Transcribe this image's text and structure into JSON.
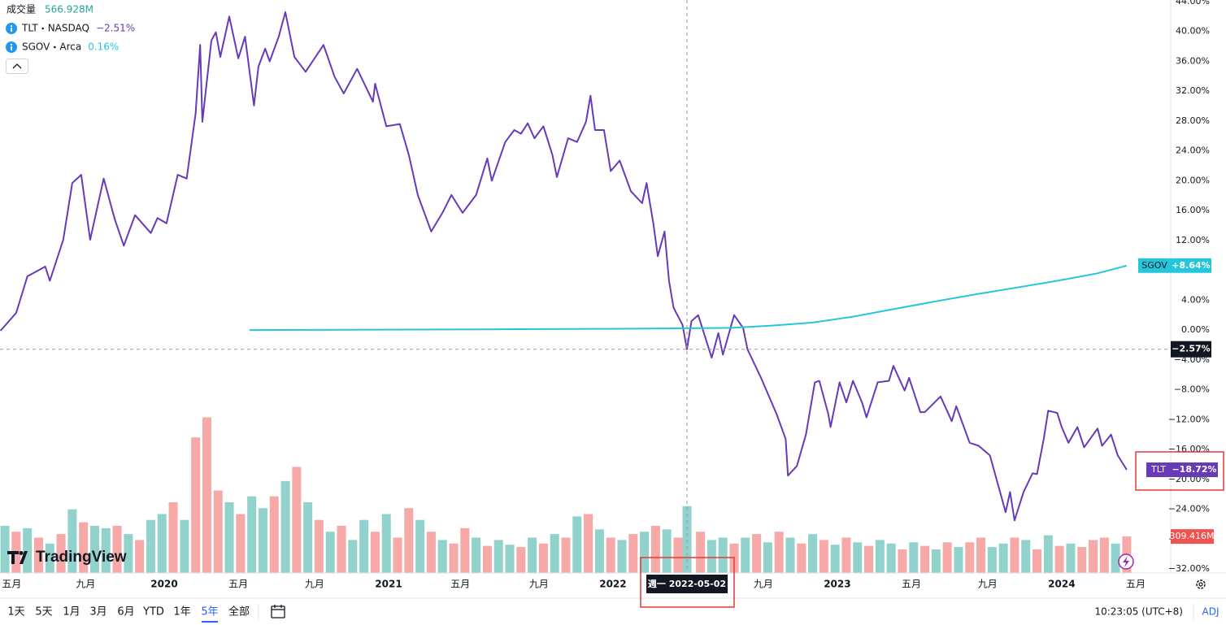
{
  "chart_data": {
    "type": "line",
    "xlim": [
      2019.268,
      2024.486
    ],
    "ylim": [
      -32,
      44
    ],
    "volume_lim": [
      0,
      4860
    ],
    "grid": true,
    "xticks": [
      {
        "value": 2019.32,
        "label": "五月"
      },
      {
        "value": 2019.65,
        "label": "九月"
      },
      {
        "value": 2020.0,
        "label": "2020"
      },
      {
        "value": 2020.33,
        "label": "五月"
      },
      {
        "value": 2020.67,
        "label": "九月"
      },
      {
        "value": 2021.0,
        "label": "2021"
      },
      {
        "value": 2021.32,
        "label": "五月"
      },
      {
        "value": 2021.67,
        "label": "九月"
      },
      {
        "value": 2022.0,
        "label": "2022"
      },
      {
        "value": 2022.67,
        "label": "九月"
      },
      {
        "value": 2023.0,
        "label": "2023"
      },
      {
        "value": 2023.33,
        "label": "五月"
      },
      {
        "value": 2023.67,
        "label": "九月"
      },
      {
        "value": 2024.0,
        "label": "2024"
      },
      {
        "value": 2024.33,
        "label": "五月"
      }
    ],
    "yticks": [
      {
        "value": 44,
        "label": "44.00%"
      },
      {
        "value": 40,
        "label": "40.00%"
      },
      {
        "value": 36,
        "label": "36.00%"
      },
      {
        "value": 32,
        "label": "32.00%"
      },
      {
        "value": 28,
        "label": "28.00%"
      },
      {
        "value": 24,
        "label": "24.00%"
      },
      {
        "value": 20,
        "label": "20.00%"
      },
      {
        "value": 16,
        "label": "16.00%"
      },
      {
        "value": 12,
        "label": "12.00%"
      },
      {
        "value": 8,
        "label": "8.00%"
      },
      {
        "value": 4,
        "label": "4.00%"
      },
      {
        "value": 0,
        "label": "0.00%"
      },
      {
        "value": -4,
        "label": "−4.00%"
      },
      {
        "value": -8,
        "label": "−8.00%"
      },
      {
        "value": -12,
        "label": "−12.00%"
      },
      {
        "value": -16,
        "label": "−16.00%"
      },
      {
        "value": -20,
        "label": "−20.00%"
      },
      {
        "value": -24,
        "label": "−24.00%"
      },
      {
        "value": -28,
        "label": "−28.00%"
      },
      {
        "value": -32,
        "label": "−32.00%"
      }
    ],
    "series": [
      {
        "name": "TLT",
        "exchange": "NASDAQ",
        "change": "−2.51%",
        "color": "#673ab7",
        "last_label": "−18.72%",
        "x": [
          2019.27,
          2019.34,
          2019.39,
          2019.47,
          2019.49,
          2019.55,
          2019.59,
          2019.63,
          2019.67,
          2019.73,
          2019.78,
          2019.82,
          2019.87,
          2019.94,
          2019.97,
          2020.01,
          2020.06,
          2020.1,
          2020.14,
          2020.16,
          2020.17,
          2020.21,
          2020.23,
          2020.25,
          2020.29,
          2020.33,
          2020.36,
          2020.4,
          2020.42,
          2020.45,
          2020.47,
          2020.51,
          2020.54,
          2020.58,
          2020.63,
          2020.71,
          2020.76,
          2020.8,
          2020.86,
          2020.93,
          2020.94,
          2020.99,
          2021.05,
          2021.09,
          2021.13,
          2021.19,
          2021.24,
          2021.28,
          2021.33,
          2021.39,
          2021.44,
          2021.46,
          2021.52,
          2021.56,
          2021.59,
          2021.62,
          2021.65,
          2021.69,
          2021.73,
          2021.75,
          2021.8,
          2021.84,
          2021.88,
          2021.9,
          2021.92,
          2021.96,
          2021.99,
          2022.03,
          2022.08,
          2022.13,
          2022.15,
          2022.18,
          2022.2,
          2022.23,
          2022.25,
          2022.27,
          2022.31,
          2022.33,
          2022.35,
          2022.38,
          2022.44,
          2022.47,
          2022.49,
          2022.54,
          2022.58,
          2022.6,
          2022.66,
          2022.73,
          2022.77,
          2022.78,
          2022.82,
          2022.86,
          2022.9,
          2022.92,
          2022.96,
          2022.97,
          2023.01,
          2023.04,
          2023.07,
          2023.11,
          2023.13,
          2023.18,
          2023.23,
          2023.25,
          2023.3,
          2023.32,
          2023.37,
          2023.39,
          2023.46,
          2023.51,
          2023.53,
          2023.59,
          2023.63,
          2023.68,
          2023.73,
          2023.75,
          2023.77,
          2023.79,
          2023.83,
          2023.87,
          2023.89,
          2023.92,
          2023.94,
          2023.98,
          2024.0,
          2024.03,
          2024.07,
          2024.1,
          2024.16,
          2024.18,
          2024.22,
          2024.25,
          2024.29
        ],
        "values": [
          -0.1,
          2.3,
          7.2,
          8.5,
          6.6,
          12.1,
          19.7,
          20.8,
          12.1,
          20.3,
          14.8,
          11.3,
          15.4,
          13.0,
          15.0,
          14.3,
          20.8,
          20.3,
          29.0,
          38.2,
          27.9,
          38.8,
          39.9,
          36.6,
          42.0,
          36.4,
          39.3,
          30.1,
          35.3,
          37.7,
          36.0,
          39.3,
          42.6,
          36.6,
          34.6,
          38.2,
          33.9,
          31.7,
          35.0,
          30.6,
          33.0,
          27.3,
          27.6,
          23.5,
          18.1,
          13.2,
          15.7,
          18.1,
          15.7,
          18.1,
          23.0,
          20.0,
          25.2,
          26.8,
          26.3,
          27.7,
          25.7,
          27.3,
          23.5,
          20.5,
          25.7,
          25.2,
          27.9,
          31.4,
          26.8,
          26.8,
          21.3,
          22.7,
          18.6,
          17.0,
          19.7,
          14.3,
          9.9,
          13.2,
          6.6,
          3.0,
          0.7,
          -2.57,
          1.2,
          2.0,
          -3.7,
          -0.4,
          -3.3,
          2.0,
          0.3,
          -2.6,
          -6.4,
          -11.3,
          -14.6,
          -19.5,
          -18.2,
          -14.0,
          -7.0,
          -6.8,
          -11.3,
          -13.0,
          -7.0,
          -9.7,
          -6.8,
          -9.7,
          -11.7,
          -7.0,
          -6.8,
          -4.8,
          -8.1,
          -6.4,
          -11.0,
          -11.0,
          -8.9,
          -12.2,
          -10.2,
          -15.1,
          -15.5,
          -16.8,
          -22.2,
          -24.4,
          -21.7,
          -25.5,
          -21.7,
          -19.2,
          -19.3,
          -14.6,
          -10.8,
          -11.1,
          -13.0,
          -15.1,
          -13.0,
          -15.7,
          -13.2,
          -15.5,
          -14.0,
          -16.8,
          -18.72
        ]
      },
      {
        "name": "SGOV",
        "exchange": "Arca",
        "change": "0.16%",
        "color": "#26c6da",
        "last_label": "+8.64%",
        "x": [
          2020.38,
          2021.44,
          2022.17,
          2022.53,
          2022.71,
          2022.89,
          2023.07,
          2023.25,
          2023.43,
          2023.62,
          2023.8,
          2023.98,
          2024.16,
          2024.29
        ],
        "values": [
          0.0,
          0.1,
          0.2,
          0.3,
          0.6,
          1.0,
          1.8,
          2.8,
          3.8,
          4.8,
          5.7,
          6.6,
          7.6,
          8.64
        ]
      }
    ],
    "volume": {
      "name": "成交量",
      "crosshair_label": "566.928M",
      "crosshair_index": 61,
      "last_label": "309.416M",
      "up_color": "#92d2cc",
      "down_color": "#f7a9a7",
      "x": [
        2019.29,
        2019.34,
        2019.39,
        2019.44,
        2019.49,
        2019.54,
        2019.59,
        2019.64,
        2019.69,
        2019.74,
        2019.79,
        2019.84,
        2019.89,
        2019.94,
        2019.99,
        2020.04,
        2020.09,
        2020.14,
        2020.19,
        2020.24,
        2020.29,
        2020.34,
        2020.39,
        2020.44,
        2020.49,
        2020.54,
        2020.59,
        2020.64,
        2020.69,
        2020.74,
        2020.79,
        2020.84,
        2020.89,
        2020.94,
        2020.99,
        2021.04,
        2021.09,
        2021.14,
        2021.19,
        2021.24,
        2021.29,
        2021.34,
        2021.39,
        2021.44,
        2021.49,
        2021.54,
        2021.59,
        2021.64,
        2021.69,
        2021.74,
        2021.79,
        2021.84,
        2021.89,
        2021.94,
        2021.99,
        2022.04,
        2022.09,
        2022.14,
        2022.19,
        2022.24,
        2022.29,
        2022.33,
        2022.39,
        2022.44,
        2022.49,
        2022.54,
        2022.59,
        2022.64,
        2022.69,
        2022.74,
        2022.79,
        2022.84,
        2022.89,
        2022.94,
        2022.99,
        2023.04,
        2023.09,
        2023.14,
        2023.19,
        2023.24,
        2023.29,
        2023.34,
        2023.39,
        2023.44,
        2023.49,
        2023.54,
        2023.59,
        2023.64,
        2023.69,
        2023.74,
        2023.79,
        2023.84,
        2023.89,
        2023.94,
        2023.99,
        2024.04,
        2024.09,
        2024.14,
        2024.19,
        2024.24,
        2024.29
      ],
      "values": [
        400,
        350,
        380,
        300,
        250,
        330,
        540,
        430,
        400,
        380,
        400,
        330,
        280,
        450,
        500,
        600,
        450,
        1150,
        1320,
        700,
        600,
        500,
        650,
        550,
        650,
        780,
        900,
        600,
        450,
        350,
        400,
        280,
        450,
        350,
        500,
        300,
        550,
        450,
        350,
        280,
        250,
        380,
        300,
        230,
        280,
        240,
        220,
        300,
        250,
        330,
        300,
        480,
        500,
        370,
        300,
        280,
        330,
        350,
        400,
        370,
        300,
        566.928,
        350,
        280,
        300,
        250,
        300,
        330,
        260,
        350,
        300,
        250,
        330,
        280,
        240,
        300,
        260,
        230,
        280,
        250,
        200,
        260,
        230,
        200,
        260,
        220,
        260,
        300,
        220,
        250,
        300,
        280,
        200,
        320,
        230,
        250,
        220,
        280,
        300,
        250,
        309.416
      ],
      "up": [
        true,
        false,
        true,
        false,
        true,
        false,
        true,
        false,
        true,
        true,
        false,
        true,
        false,
        true,
        true,
        false,
        true,
        false,
        false,
        false,
        true,
        false,
        true,
        true,
        false,
        true,
        false,
        true,
        false,
        true,
        false,
        true,
        true,
        false,
        true,
        false,
        false,
        true,
        false,
        true,
        false,
        false,
        true,
        false,
        true,
        true,
        false,
        true,
        false,
        true,
        false,
        true,
        false,
        true,
        false,
        true,
        false,
        true,
        false,
        true,
        false,
        true,
        false,
        true,
        true,
        false,
        true,
        false,
        true,
        false,
        true,
        false,
        true,
        false,
        true,
        false,
        true,
        false,
        true,
        true,
        false,
        true,
        false,
        true,
        false,
        true,
        false,
        false,
        true,
        true,
        false,
        true,
        false,
        true,
        false,
        true,
        false,
        false,
        false,
        true,
        false
      ]
    },
    "crosshair": {
      "x": 2022.33,
      "y": -2.57,
      "x_label": "週一 2022-05-02",
      "y_label": "−2.57%"
    }
  },
  "logo": "TradingView",
  "toolbar": {
    "ranges": [
      "1天",
      "5天",
      "1月",
      "3月",
      "6月",
      "YTD",
      "1年",
      "5年",
      "全部"
    ],
    "active": 7,
    "clock": "10:23:05 (UTC+8)",
    "adj": "ADJ"
  }
}
